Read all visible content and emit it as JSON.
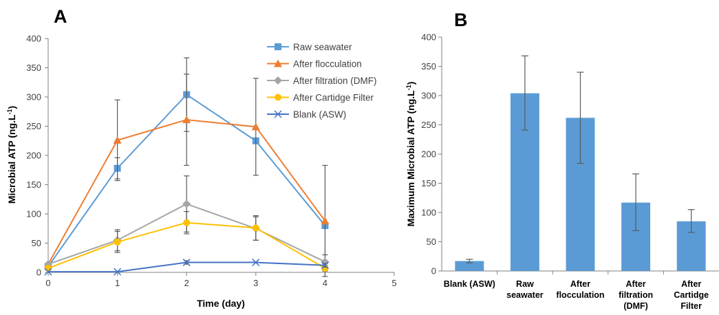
{
  "chart_data": [
    {
      "type": "line",
      "panel_label": "A",
      "xlabel": "Time (day)",
      "ylabel": "Microbial ATP (ng.L",
      "ylabel_sup": "-1",
      "ylabel_end": ")",
      "xlim": [
        0,
        5
      ],
      "ylim": [
        0,
        400
      ],
      "xticks": [
        "0",
        "1",
        "2",
        "3",
        "4",
        "5"
      ],
      "yticks": [
        "0",
        "50",
        "100",
        "150",
        "200",
        "250",
        "300",
        "350",
        "400"
      ],
      "grid": false,
      "legend": "top-right",
      "x": [
        0,
        1,
        2,
        3,
        4
      ],
      "series": [
        {
          "name": "Raw seawater",
          "color": "#5b9bd5",
          "marker": "square",
          "values": [
            10,
            178,
            304,
            225,
            80
          ],
          "err": [
            0,
            18,
            63,
            0,
            0
          ]
        },
        {
          "name": "After flocculation",
          "color": "#ed7d31",
          "marker": "triangle",
          "values": [
            14,
            226,
            261,
            249,
            88
          ],
          "err": [
            0,
            69,
            78,
            83,
            95
          ]
        },
        {
          "name": "After filtration (DMF)",
          "color": "#a5a5a5",
          "marker": "diamond",
          "values": [
            14,
            55,
            117,
            75,
            18
          ],
          "err": [
            0,
            18,
            48,
            20,
            12
          ]
        },
        {
          "name": "After Cartidge Filter",
          "color": "#ffc000",
          "marker": "circle",
          "values": [
            7,
            52,
            85,
            76,
            7
          ],
          "err": [
            0,
            18,
            19,
            21,
            5
          ]
        },
        {
          "name": "Blank (ASW)",
          "color": "#4472c4",
          "marker": "x",
          "values": [
            1,
            1,
            17,
            17,
            12
          ],
          "err": [
            0,
            0,
            3,
            0,
            3
          ]
        }
      ]
    },
    {
      "type": "bar",
      "panel_label": "B",
      "ylabel": "Maximum Microbial ATP (ng.L",
      "ylabel_sup": "-1",
      "ylabel_end": ")",
      "ylim": [
        0,
        400
      ],
      "yticks": [
        "0",
        "50",
        "100",
        "150",
        "200",
        "250",
        "300",
        "350",
        "400"
      ],
      "grid": false,
      "color": "#5b9bd5",
      "categories": [
        [
          "Blank (ASW)"
        ],
        [
          "Raw",
          "seawater"
        ],
        [
          "After",
          "flocculation"
        ],
        [
          "After",
          "filtration",
          "(DMF)"
        ],
        [
          "After",
          "Cartidge",
          "Filter"
        ]
      ],
      "values": [
        17,
        304,
        262,
        117,
        85
      ],
      "err_low": [
        14,
        241,
        184,
        69,
        66
      ],
      "err_high": [
        20,
        368,
        340,
        166,
        105
      ]
    }
  ]
}
